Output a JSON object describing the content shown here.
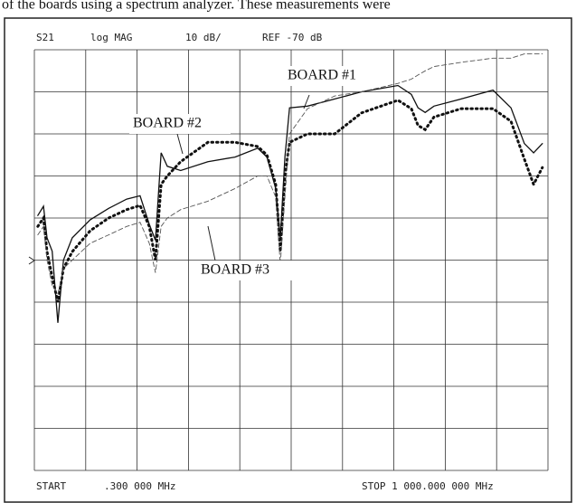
{
  "caption": "of the boards using a spectrum analyzer. These measurements were",
  "chart_data": {
    "type": "line",
    "header": {
      "parameter": "S21",
      "format": "log MAG",
      "scale": "10 dB/",
      "reference": "REF -70 dB"
    },
    "footer": {
      "start_label": "START",
      "start": ".300 000 MHz",
      "stop": "STOP 1 000.000 000 MHz"
    },
    "annotations": [
      "BOARD #1",
      "BOARD #2",
      "BOARD #3"
    ],
    "xlim": [
      0.3,
      1000
    ],
    "xticks": [
      0.3,
      100.27,
      200.24,
      300.21,
      400.18,
      500.15,
      600.12,
      700.09,
      800.06,
      900.03,
      1000
    ],
    "ylim": [
      -120,
      -20
    ],
    "yticks": [
      -20,
      -30,
      -40,
      -50,
      -60,
      -70,
      -80,
      -90,
      -100,
      -110,
      -120
    ],
    "grid": true,
    "x": [
      7,
      18,
      25,
      35,
      46,
      57,
      74,
      109,
      145,
      180,
      206,
      224,
      236,
      247,
      259,
      285,
      338,
      391,
      435,
      453,
      470,
      479,
      488,
      497,
      532,
      585,
      637,
      708,
      734,
      747,
      761,
      778,
      831,
      893,
      928,
      954,
      972,
      989
    ],
    "series": [
      {
        "name": "BOARD #1",
        "color": "#111111",
        "style": "solid",
        "values": [
          -59.4,
          -57.2,
          -64.7,
          -67.9,
          -84.9,
          -70,
          -64.7,
          -60.4,
          -57.7,
          -55.5,
          -54.7,
          -61.5,
          -65.3,
          -44.5,
          -47.7,
          -48.7,
          -46.6,
          -45.5,
          -43.4,
          -45.5,
          -53,
          -64.7,
          -45.5,
          -33.8,
          -33.4,
          -31.7,
          -30,
          -28.5,
          -30.6,
          -33.8,
          -34.9,
          -33.4,
          -31.7,
          -29.6,
          -33.8,
          -42.3,
          -44.5,
          -42.3
        ]
      },
      {
        "name": "BOARD #2",
        "color": "#111111",
        "style": "dotted",
        "values": [
          -62,
          -60,
          -68,
          -74,
          -80,
          -72,
          -68,
          -63,
          -60,
          -58,
          -57,
          -62,
          -70,
          -52,
          -50,
          -46.6,
          -42,
          -42,
          -43,
          -45,
          -52,
          -68,
          -50,
          -42,
          -40,
          -40,
          -35,
          -32,
          -34,
          -38,
          -39,
          -36,
          -34,
          -34,
          -37,
          -46,
          -52,
          -48
        ]
      },
      {
        "name": "BOARD #3",
        "color": "#555555",
        "style": "dashed",
        "values": [
          -64,
          -62,
          -70,
          -76,
          -78,
          -72,
          -70,
          -66,
          -64,
          -62,
          -61,
          -66,
          -73,
          -62,
          -60,
          -58,
          -56,
          -53,
          -50,
          -50,
          -55,
          -71,
          -55,
          -40,
          -34,
          -31,
          -30,
          -28,
          -27,
          -26,
          -25,
          -24,
          -23,
          -22,
          -22,
          -21,
          -21,
          -21
        ]
      }
    ]
  }
}
